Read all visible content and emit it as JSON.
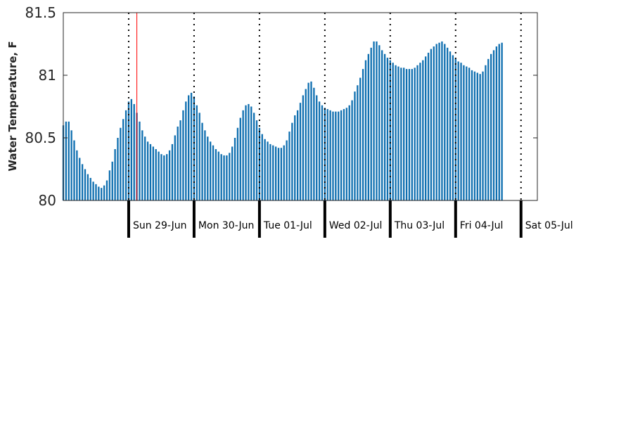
{
  "chart_data": {
    "type": "bar",
    "xlabel": "",
    "ylabel": "Water Temperature, F",
    "ylim": [
      80,
      81.5
    ],
    "yticks": [
      "80",
      "80.5",
      "81",
      "81.5"
    ],
    "x_start": "2014-06-28T00:00",
    "x_end": "2014-07-05T06:00",
    "time_step": "hourly",
    "bar_color": "#0f6fb0",
    "day_boundary_line_style": "dotted",
    "current_time_marker": {
      "time": "2014-06-29T03:00",
      "color": "#ff0000"
    },
    "day_labels": [
      {
        "date": "2014-06-29",
        "label": "Sun 29-Jun"
      },
      {
        "date": "2014-06-30",
        "label": "Mon 30-Jun"
      },
      {
        "date": "2014-07-01",
        "label": "Tue 01-Jul"
      },
      {
        "date": "2014-07-02",
        "label": "Wed 02-Jul"
      },
      {
        "date": "2014-07-03",
        "label": "Thu 03-Jul"
      },
      {
        "date": "2014-07-04",
        "label": "Fri 04-Jul"
      },
      {
        "date": "2014-07-05",
        "label": "Sat 05-Jul"
      }
    ],
    "series": [
      {
        "values": [
          80.6,
          80.63,
          80.63,
          80.56,
          80.48,
          80.4,
          80.34,
          80.29,
          80.25,
          80.21,
          80.18,
          80.15,
          80.13,
          80.11,
          80.1,
          80.12,
          80.16,
          80.24,
          80.31,
          80.41,
          80.5,
          80.58,
          80.65,
          80.72,
          80.79,
          80.81,
          80.77,
          80.7,
          80.63,
          80.56,
          80.51,
          80.47,
          80.45,
          80.43,
          80.41,
          80.39,
          80.37,
          80.36,
          80.37,
          80.4,
          80.45,
          80.52,
          80.59,
          80.64,
          80.72,
          80.79,
          80.84,
          80.86,
          80.83,
          80.76,
          80.7,
          80.62,
          80.56,
          80.51,
          80.47,
          80.44,
          80.41,
          80.39,
          80.37,
          80.36,
          80.36,
          80.38,
          80.43,
          80.5,
          80.58,
          80.66,
          80.72,
          80.76,
          80.77,
          80.75,
          80.7,
          80.64,
          80.58,
          80.53,
          80.49,
          80.47,
          80.45,
          80.44,
          80.43,
          80.42,
          80.42,
          80.44,
          80.48,
          80.55,
          80.62,
          80.68,
          80.72,
          80.78,
          80.84,
          80.89,
          80.94,
          80.95,
          80.9,
          80.84,
          80.79,
          80.76,
          80.74,
          80.73,
          80.72,
          80.71,
          80.71,
          80.71,
          80.72,
          80.73,
          80.74,
          80.76,
          80.8,
          80.87,
          80.92,
          80.98,
          81.05,
          81.12,
          81.17,
          81.22,
          81.27,
          81.27,
          81.24,
          81.2,
          81.17,
          81.14,
          81.12,
          81.1,
          81.08,
          81.07,
          81.06,
          81.06,
          81.05,
          81.05,
          81.05,
          81.06,
          81.08,
          81.1,
          81.12,
          81.15,
          81.18,
          81.21,
          81.23,
          81.25,
          81.26,
          81.27,
          81.25,
          81.22,
          81.19,
          81.16,
          81.13,
          81.11,
          81.1,
          81.08,
          81.07,
          81.06,
          81.04,
          81.03,
          81.02,
          81.01,
          81.03,
          81.08,
          81.13,
          81.17,
          81.2,
          81.23,
          81.25,
          81.26
        ]
      }
    ]
  }
}
